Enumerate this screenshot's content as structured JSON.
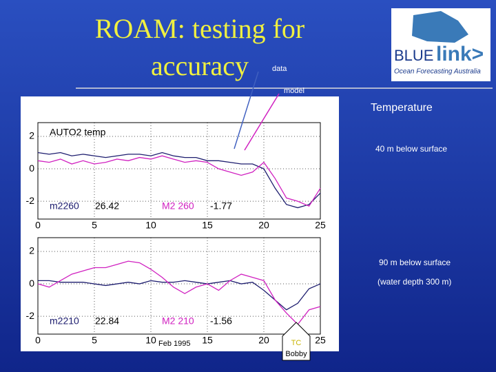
{
  "slide_title": [
    "ROAM: testing for",
    "accuracy"
  ],
  "labels": {
    "data": "data",
    "model": "model",
    "temperature": "Temperature",
    "depth_40": "40 m below surface",
    "depth_90": "90 m below surface",
    "water_depth": "(water depth 300 m)",
    "date": "Feb 1995",
    "event": [
      "TC",
      "Bobby"
    ]
  },
  "logo": {
    "blue": "BLUE",
    "link": "link>",
    "tagline": "Ocean Forecasting Australia"
  },
  "chart_data": [
    {
      "type": "line",
      "title": "AUTO2  temp",
      "annotations": [
        "m2260",
        "26.42",
        "M2 260",
        "-1.77"
      ],
      "x": [
        0,
        1,
        2,
        3,
        4,
        5,
        6,
        7,
        8,
        9,
        10,
        11,
        12,
        13,
        14,
        15,
        16,
        17,
        18,
        19,
        20,
        21,
        22,
        23,
        24,
        25
      ],
      "series": [
        {
          "color": "#1c1c6e",
          "values": [
            1.0,
            0.9,
            1.0,
            0.8,
            0.9,
            0.8,
            0.7,
            0.8,
            0.9,
            0.9,
            0.8,
            1.0,
            0.8,
            0.7,
            0.7,
            0.5,
            0.5,
            0.4,
            0.3,
            0.3,
            0.0,
            -1.2,
            -2.2,
            -2.4,
            -2.2,
            -1.5
          ]
        },
        {
          "color": "#d020c0",
          "values": [
            0.5,
            0.4,
            0.6,
            0.3,
            0.5,
            0.3,
            0.4,
            0.6,
            0.5,
            0.7,
            0.6,
            0.8,
            0.6,
            0.4,
            0.5,
            0.4,
            0.0,
            -0.2,
            -0.4,
            -0.2,
            0.4,
            -0.6,
            -1.8,
            -2.0,
            -2.3,
            -1.2
          ]
        }
      ],
      "xlim": [
        0,
        25
      ],
      "xticks": [
        0,
        5,
        10,
        15,
        20,
        25
      ],
      "ylim": [
        -3.1,
        2.85
      ],
      "yticks": [
        -2,
        0,
        2
      ],
      "grid": true
    },
    {
      "type": "line",
      "annotations": [
        "m2210",
        "22.84",
        "M2 210",
        "-1.56"
      ],
      "x": [
        0,
        1,
        2,
        3,
        4,
        5,
        6,
        7,
        8,
        9,
        10,
        11,
        12,
        13,
        14,
        15,
        16,
        17,
        18,
        19,
        20,
        21,
        22,
        23,
        24,
        25
      ],
      "series": [
        {
          "color": "#1c1c6e",
          "values": [
            0.2,
            0.2,
            0.1,
            0.1,
            0.1,
            0.0,
            -0.1,
            0.0,
            0.1,
            0.0,
            0.2,
            0.1,
            0.1,
            0.2,
            0.1,
            0.0,
            0.1,
            0.2,
            0.0,
            0.1,
            -0.4,
            -1.0,
            -1.6,
            -1.2,
            -0.3,
            0.0
          ]
        },
        {
          "color": "#d020c0",
          "values": [
            0.0,
            -0.2,
            0.2,
            0.6,
            0.8,
            1.0,
            1.0,
            1.2,
            1.4,
            1.3,
            0.9,
            0.4,
            -0.2,
            -0.6,
            -0.2,
            0.0,
            -0.4,
            0.2,
            0.6,
            0.4,
            0.2,
            -1.0,
            -1.8,
            -2.5,
            -1.6,
            -1.4
          ]
        }
      ],
      "xlim": [
        0,
        25
      ],
      "xticks": [
        0,
        5,
        10,
        15,
        20,
        25
      ],
      "ylim": [
        -3.1,
        2.85
      ],
      "yticks": [
        -2,
        0,
        2
      ],
      "grid": true
    }
  ]
}
